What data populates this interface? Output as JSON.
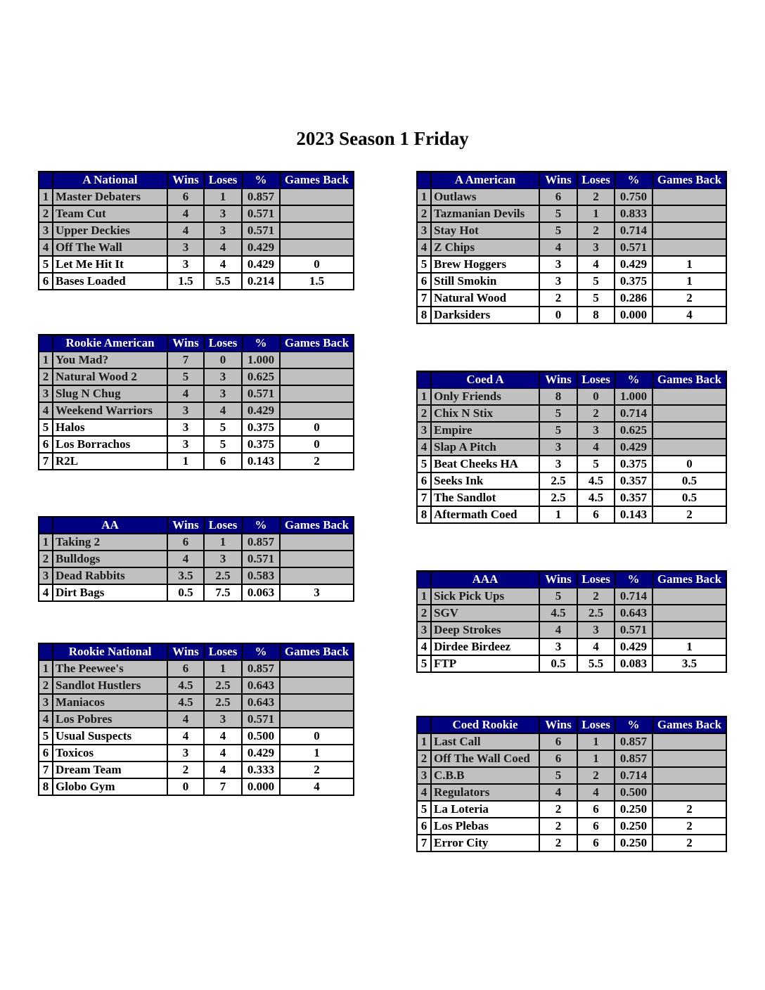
{
  "title": "2023 Season 1 Friday",
  "colors": {
    "header_bg": "#000080",
    "header_text": "#ffffff",
    "shaded_row": "#c0c0c0"
  },
  "columns": [
    "Wins",
    "Loses",
    "%",
    "Games Back"
  ],
  "tables": [
    {
      "division": "A National",
      "side": "left",
      "rows": [
        [
          "1",
          "Master Debaters",
          "6",
          "1",
          "0.857",
          ""
        ],
        [
          "2",
          "Team Cut",
          "4",
          "3",
          "0.571",
          ""
        ],
        [
          "3",
          "Upper Deckies",
          "4",
          "3",
          "0.571",
          ""
        ],
        [
          "4",
          "Off The Wall",
          "3",
          "4",
          "0.429",
          ""
        ],
        [
          "5",
          "Let Me Hit It",
          "3",
          "4",
          "0.429",
          "0"
        ],
        [
          "6",
          "Bases Loaded",
          "1.5",
          "5.5",
          "0.214",
          "1.5"
        ]
      ]
    },
    {
      "division": "Rookie American",
      "side": "left",
      "rows": [
        [
          "1",
          "You Mad?",
          "7",
          "0",
          "1.000",
          ""
        ],
        [
          "2",
          "Natural Wood 2",
          "5",
          "3",
          "0.625",
          ""
        ],
        [
          "3",
          "Slug N Chug",
          "4",
          "3",
          "0.571",
          ""
        ],
        [
          "4",
          "Weekend Warriors",
          "3",
          "4",
          "0.429",
          ""
        ],
        [
          "5",
          "Halos",
          "3",
          "5",
          "0.375",
          "0"
        ],
        [
          "6",
          "Los Borrachos",
          "3",
          "5",
          "0.375",
          "0"
        ],
        [
          "7",
          "R2L",
          "1",
          "6",
          "0.143",
          "2"
        ]
      ]
    },
    {
      "division": "AA",
      "side": "left",
      "rows": [
        [
          "1",
          "Taking 2",
          "6",
          "1",
          "0.857",
          ""
        ],
        [
          "2",
          "Bulldogs",
          "4",
          "3",
          "0.571",
          ""
        ],
        [
          "3",
          "Dead Rabbits",
          "3.5",
          "2.5",
          "0.583",
          ""
        ],
        [
          "4",
          "Dirt Bags",
          "0.5",
          "7.5",
          "0.063",
          "3"
        ]
      ]
    },
    {
      "division": "Rookie National",
      "side": "left",
      "rows": [
        [
          "1",
          "The Peewee's",
          "6",
          "1",
          "0.857",
          ""
        ],
        [
          "2",
          "Sandlot Hustlers",
          "4.5",
          "2.5",
          "0.643",
          ""
        ],
        [
          "3",
          "Maniacos",
          "4.5",
          "2.5",
          "0.643",
          ""
        ],
        [
          "4",
          "Los Pobres",
          "4",
          "3",
          "0.571",
          ""
        ],
        [
          "5",
          "Usual Suspects",
          "4",
          "4",
          "0.500",
          "0"
        ],
        [
          "6",
          "Toxicos",
          "3",
          "4",
          "0.429",
          "1"
        ],
        [
          "7",
          "Dream Team",
          "2",
          "4",
          "0.333",
          "2"
        ],
        [
          "8",
          "Globo Gym",
          "0",
          "7",
          "0.000",
          "4"
        ]
      ]
    },
    {
      "division": "A American",
      "side": "right",
      "rows": [
        [
          "1",
          "Outlaws",
          "6",
          "2",
          "0.750",
          ""
        ],
        [
          "2",
          "Tazmanian Devils",
          "5",
          "1",
          "0.833",
          ""
        ],
        [
          "3",
          "Stay Hot",
          "5",
          "2",
          "0.714",
          ""
        ],
        [
          "4",
          "Z Chips",
          "4",
          "3",
          "0.571",
          ""
        ],
        [
          "5",
          "Brew Hoggers",
          "3",
          "4",
          "0.429",
          "1"
        ],
        [
          "6",
          "Still Smokin",
          "3",
          "5",
          "0.375",
          "1"
        ],
        [
          "7",
          "Natural Wood",
          "2",
          "5",
          "0.286",
          "2"
        ],
        [
          "8",
          "Darksiders",
          "0",
          "8",
          "0.000",
          "4"
        ]
      ]
    },
    {
      "division": "Coed A",
      "side": "right",
      "rows": [
        [
          "1",
          "Only Friends",
          "8",
          "0",
          "1.000",
          ""
        ],
        [
          "2",
          "Chix N Stix",
          "5",
          "2",
          "0.714",
          ""
        ],
        [
          "3",
          "Empire",
          "5",
          "3",
          "0.625",
          ""
        ],
        [
          "4",
          "Slap A Pitch",
          "3",
          "4",
          "0.429",
          ""
        ],
        [
          "5",
          "Beat Cheeks HA",
          "3",
          "5",
          "0.375",
          "0"
        ],
        [
          "6",
          "Seeks Ink",
          "2.5",
          "4.5",
          "0.357",
          "0.5"
        ],
        [
          "7",
          "The Sandlot",
          "2.5",
          "4.5",
          "0.357",
          "0.5"
        ],
        [
          "8",
          "Aftermath Coed",
          "1",
          "6",
          "0.143",
          "2"
        ]
      ]
    },
    {
      "division": "AAA",
      "side": "right",
      "rows": [
        [
          "1",
          "Sick Pick Ups",
          "5",
          "2",
          "0.714",
          ""
        ],
        [
          "2",
          "SGV",
          "4.5",
          "2.5",
          "0.643",
          ""
        ],
        [
          "3",
          "Deep Strokes",
          "4",
          "3",
          "0.571",
          ""
        ],
        [
          "4",
          "Dirdee Birdeez",
          "3",
          "4",
          "0.429",
          "1"
        ],
        [
          "5",
          "FTP",
          "0.5",
          "5.5",
          "0.083",
          "3.5"
        ]
      ]
    },
    {
      "division": "Coed Rookie",
      "side": "right",
      "rows": [
        [
          "1",
          "Last Call",
          "6",
          "1",
          "0.857",
          ""
        ],
        [
          "2",
          "Off The Wall Coed",
          "6",
          "1",
          "0.857",
          ""
        ],
        [
          "3",
          "C.B.B",
          "5",
          "2",
          "0.714",
          ""
        ],
        [
          "4",
          "Regulators",
          "4",
          "4",
          "0.500",
          ""
        ],
        [
          "5",
          "La Loteria",
          "2",
          "6",
          "0.250",
          "2"
        ],
        [
          "6",
          "Los Plebas",
          "2",
          "6",
          "0.250",
          "2"
        ],
        [
          "7",
          "Error City",
          "2",
          "6",
          "0.250",
          "2"
        ]
      ]
    }
  ]
}
